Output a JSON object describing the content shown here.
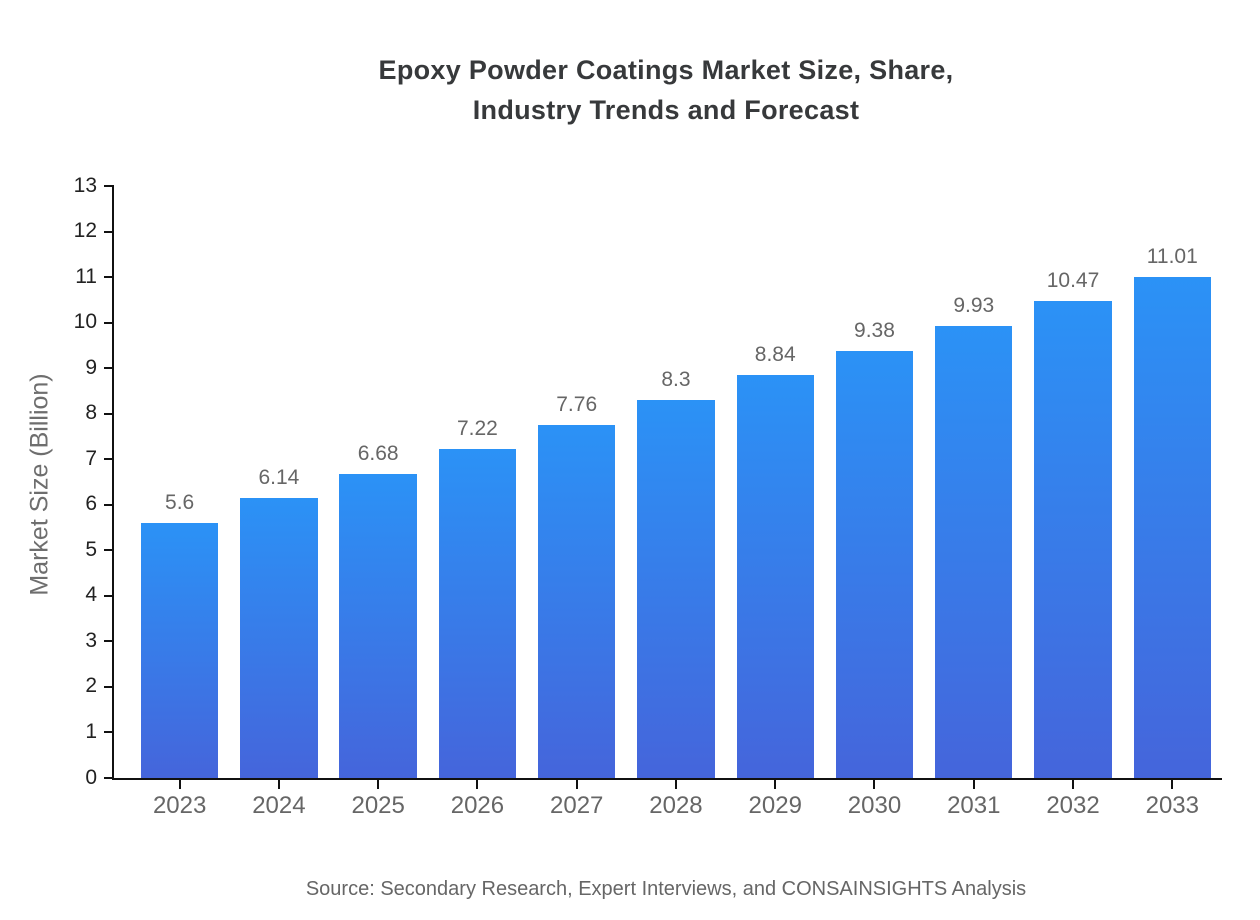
{
  "title": {
    "line1": "Epoxy Powder Coatings Market Size, Share,",
    "line2": "Industry Trends and Forecast"
  },
  "source": "Source: Secondary Research, Expert Interviews, and CONSAINSIGHTS Analysis",
  "chart_data": {
    "type": "bar",
    "title": "Epoxy Powder Coatings Market Size, Share, Industry Trends and Forecast",
    "categories": [
      "2023",
      "2024",
      "2025",
      "2026",
      "2027",
      "2028",
      "2029",
      "2030",
      "2031",
      "2032",
      "2033"
    ],
    "values": [
      5.6,
      6.14,
      6.68,
      7.22,
      7.76,
      8.3,
      8.84,
      9.38,
      9.93,
      10.47,
      11.01
    ],
    "value_labels": [
      "5.6",
      "6.14",
      "6.68",
      "7.22",
      "7.76",
      "8.3",
      "8.84",
      "9.38",
      "9.93",
      "10.47",
      "11.01"
    ],
    "xlabel": "",
    "ylabel": "Market Size (Billion)",
    "ylim": [
      0,
      13
    ],
    "ytick_step": 1,
    "yticks": [
      0,
      1,
      2,
      3,
      4,
      5,
      6,
      7,
      8,
      9,
      10,
      11,
      12,
      13
    ],
    "grid": false,
    "legend": false,
    "bar_color_top": "#2B92F6",
    "bar_color_bottom": "#4565DB",
    "axis_color": "#111111",
    "tick_label_color": "#222222",
    "category_label_color": "#666666",
    "value_label_color": "#666666",
    "title_color": "#37393b",
    "ylabel_color": "#6e6e6e",
    "source_color": "#666666"
  }
}
